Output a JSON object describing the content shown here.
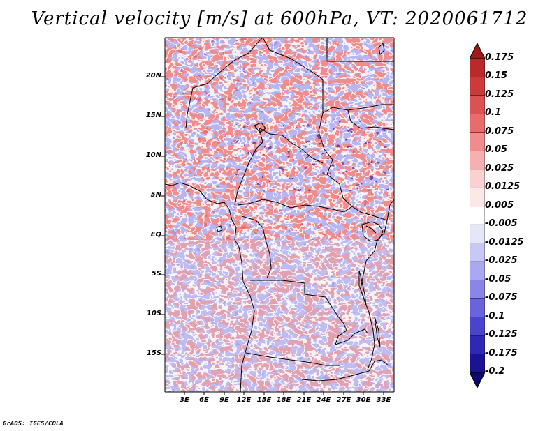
{
  "title": "Vertical velocity [m/s] at 600hPa, VT: 2020061712",
  "credit": "GrADS: IGES/COLA",
  "map": {
    "lat_labels": [
      "20N",
      "15N",
      "10N",
      "5N",
      "EQ",
      "5S",
      "10S",
      "15S"
    ],
    "lon_labels": [
      "3E",
      "6E",
      "9E",
      "12E",
      "15E",
      "18E",
      "21E",
      "24E",
      "27E",
      "30E",
      "33E"
    ],
    "lat_range": [
      -20,
      24.5
    ],
    "lon_range": [
      0,
      34.5
    ]
  },
  "colorbar": {
    "labels": [
      "0.175",
      "0.15",
      "0.125",
      "0.1",
      "0.075",
      "0.05",
      "0.025",
      "0.0125",
      "0.005",
      "-0.005",
      "-0.0125",
      "-0.025",
      "-0.05",
      "-0.075",
      "-0.1",
      "-0.125",
      "-0.175",
      "-0.2"
    ],
    "colors": [
      "#a01818",
      "#b92a2a",
      "#cc3b3b",
      "#dc5252",
      "#e86c6c",
      "#f08c8c",
      "#f6b0b0",
      "#fad0d0",
      "#fde8e8",
      "#ffffff",
      "#e6e6fb",
      "#c8c8f6",
      "#aaa8f0",
      "#8a86e8",
      "#6a64dc",
      "#4a44cc",
      "#2e28b4",
      "#1a1494",
      "#0c0870"
    ]
  }
}
